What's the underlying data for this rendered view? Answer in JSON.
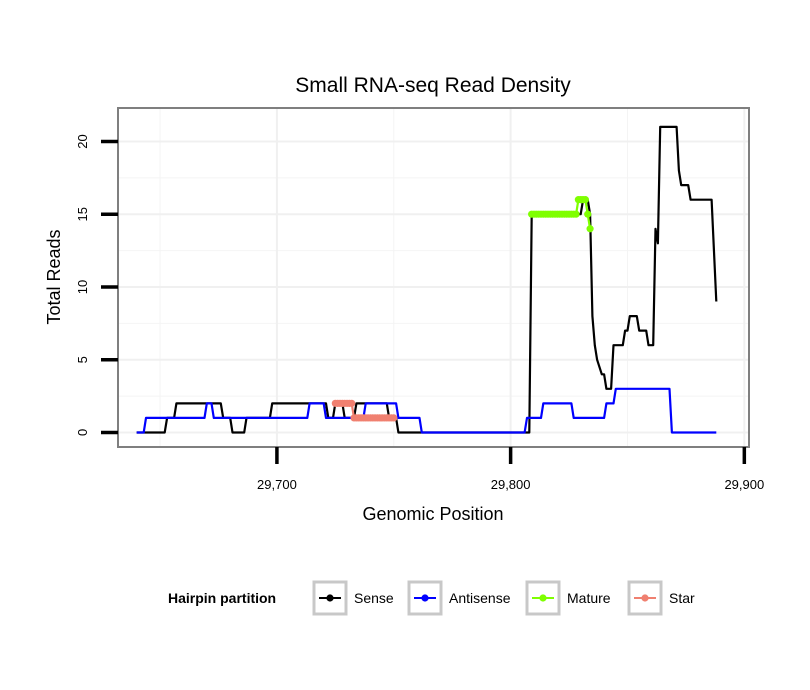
{
  "chart_data": {
    "type": "line",
    "title": "Small RNA-seq Read Density",
    "xlabel": "Genomic Position",
    "ylabel": "Total Reads",
    "xlim": [
      29632,
      29902
    ],
    "ylim": [
      -1,
      22.3
    ],
    "x_ticks": [
      29700,
      29800,
      29900
    ],
    "x_tick_labels": [
      "29,700",
      "29,800",
      "29,900"
    ],
    "y_ticks": [
      0,
      5,
      10,
      15,
      20
    ],
    "y_tick_labels": [
      "0",
      "5",
      "10",
      "15",
      "20"
    ],
    "grid": true,
    "legend": {
      "title": "Hairpin partition",
      "position": "bottom",
      "entries": [
        {
          "label": "Sense",
          "color": "#000000"
        },
        {
          "label": "Antisense",
          "color": "#0000ff"
        },
        {
          "label": "Mature",
          "color": "#7fff00"
        },
        {
          "label": "Star",
          "color": "#f08070"
        }
      ]
    },
    "series": [
      {
        "name": "Sense",
        "color": "#000000",
        "style": "line",
        "x": [
          29640,
          29652,
          29653,
          29656,
          29657,
          29662,
          29667,
          29676,
          29677,
          29680,
          29681,
          29686,
          29687,
          29697,
          29698,
          29707,
          29708,
          29721,
          29722,
          29724,
          29725,
          29728,
          29729,
          29733,
          29734,
          29747,
          29748,
          29751,
          29752,
          29808,
          29809,
          29812,
          29830,
          29831,
          29833,
          29834,
          29835,
          29836,
          29837,
          29839,
          29840,
          29841,
          29843,
          29844,
          29848,
          29849,
          29850,
          29851,
          29854,
          29855,
          29858,
          29859,
          29861,
          29862,
          29863,
          29864,
          29865,
          29866,
          29871,
          29872,
          29873,
          29876,
          29877,
          29886,
          29888
        ],
        "y": [
          0,
          0,
          1,
          1,
          2,
          2,
          2,
          2,
          1,
          1,
          0,
          0,
          1,
          1,
          2,
          2,
          2,
          2,
          1,
          1,
          2,
          2,
          1,
          1,
          2,
          2,
          1,
          1,
          0,
          0,
          15,
          15,
          15,
          16,
          16,
          15,
          8,
          6,
          5,
          4,
          4,
          3,
          3,
          6,
          6,
          7,
          7,
          8,
          8,
          7,
          7,
          6,
          6,
          14,
          13,
          21,
          21,
          21,
          21,
          18,
          17,
          17,
          16,
          16,
          9
        ]
      },
      {
        "name": "Antisense",
        "color": "#0000ff",
        "style": "line",
        "x": [
          29640,
          29643,
          29644,
          29669,
          29670,
          29672,
          29673,
          29713,
          29714,
          29720,
          29721,
          29737,
          29738,
          29751,
          29752,
          29761,
          29762,
          29806,
          29807,
          29813,
          29814,
          29826,
          29827,
          29840,
          29841,
          29844,
          29845,
          29868,
          29869,
          29888
        ],
        "y": [
          0,
          0,
          1,
          1,
          2,
          2,
          1,
          1,
          2,
          2,
          1,
          1,
          2,
          2,
          1,
          1,
          0,
          0,
          1,
          1,
          2,
          2,
          1,
          1,
          2,
          2,
          3,
          3,
          0,
          0
        ]
      },
      {
        "name": "Mature",
        "color": "#7fff00",
        "style": "line-points",
        "x": [
          29809,
          29810,
          29811,
          29812,
          29813,
          29814,
          29815,
          29816,
          29817,
          29818,
          29819,
          29820,
          29821,
          29822,
          29823,
          29824,
          29825,
          29826,
          29827,
          29828,
          29829,
          29830,
          29831,
          29832,
          29833,
          29834
        ],
        "y": [
          15,
          15,
          15,
          15,
          15,
          15,
          15,
          15,
          15,
          15,
          15,
          15,
          15,
          15,
          15,
          15,
          15,
          15,
          15,
          15,
          16,
          16,
          16,
          16,
          15,
          14
        ]
      },
      {
        "name": "Star",
        "color": "#f08070",
        "style": "line-points",
        "x": [
          29725,
          29726,
          29727,
          29728,
          29729,
          29730,
          29731,
          29732,
          29733,
          29734,
          29735,
          29736,
          29737,
          29738,
          29739,
          29740,
          29741,
          29742,
          29743,
          29744,
          29745,
          29746,
          29747,
          29748,
          29749,
          29750
        ],
        "y": [
          2,
          2,
          2,
          2,
          2,
          2,
          2,
          2,
          1,
          1,
          1,
          1,
          1,
          1,
          1,
          1,
          1,
          1,
          1,
          1,
          1,
          1,
          1,
          1,
          1,
          1
        ]
      }
    ]
  }
}
